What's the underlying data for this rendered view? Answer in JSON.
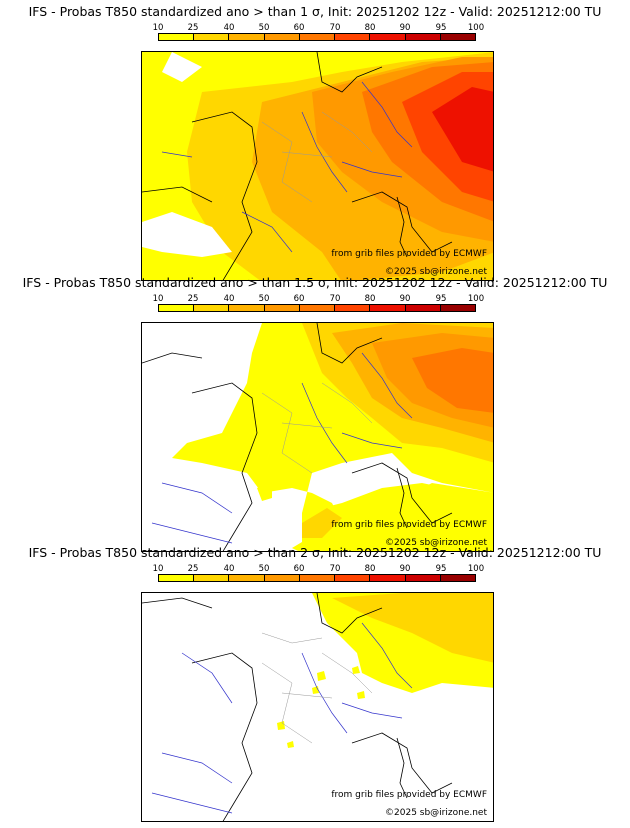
{
  "legend": {
    "ticks": [
      "10",
      "25",
      "40",
      "50",
      "60",
      "70",
      "80",
      "90",
      "95",
      "100"
    ],
    "colors": [
      "#ffff00",
      "#ffd700",
      "#ffb300",
      "#ff9900",
      "#ff7700",
      "#ff4400",
      "#ee1100",
      "#cc0000",
      "#990000",
      "#660000"
    ]
  },
  "panels": [
    {
      "title": "IFS - Probas T850  standardized ano > than 1 σ, Init: 20251202 12z - Valid: 20251212:00 TU",
      "source_credit": "from grib files provided by ECMWF",
      "site_credit": "©2025 sb@irizone.net"
    },
    {
      "title": "IFS - Probas T850  standardized ano > than 1.5 σ, Init: 20251202 12z - Valid: 20251212:00 TU",
      "source_credit": "from grib files provided by ECMWF",
      "site_credit": "©2025 sb@irizone.net"
    },
    {
      "title": "IFS - Probas T850  standardized ano > than 2 σ, Init: 20251202 12z - Valid: 20251212:00 TU",
      "source_credit": "from grib files provided by ECMWF",
      "site_credit": "©2025 sb@irizone.net"
    }
  ]
}
